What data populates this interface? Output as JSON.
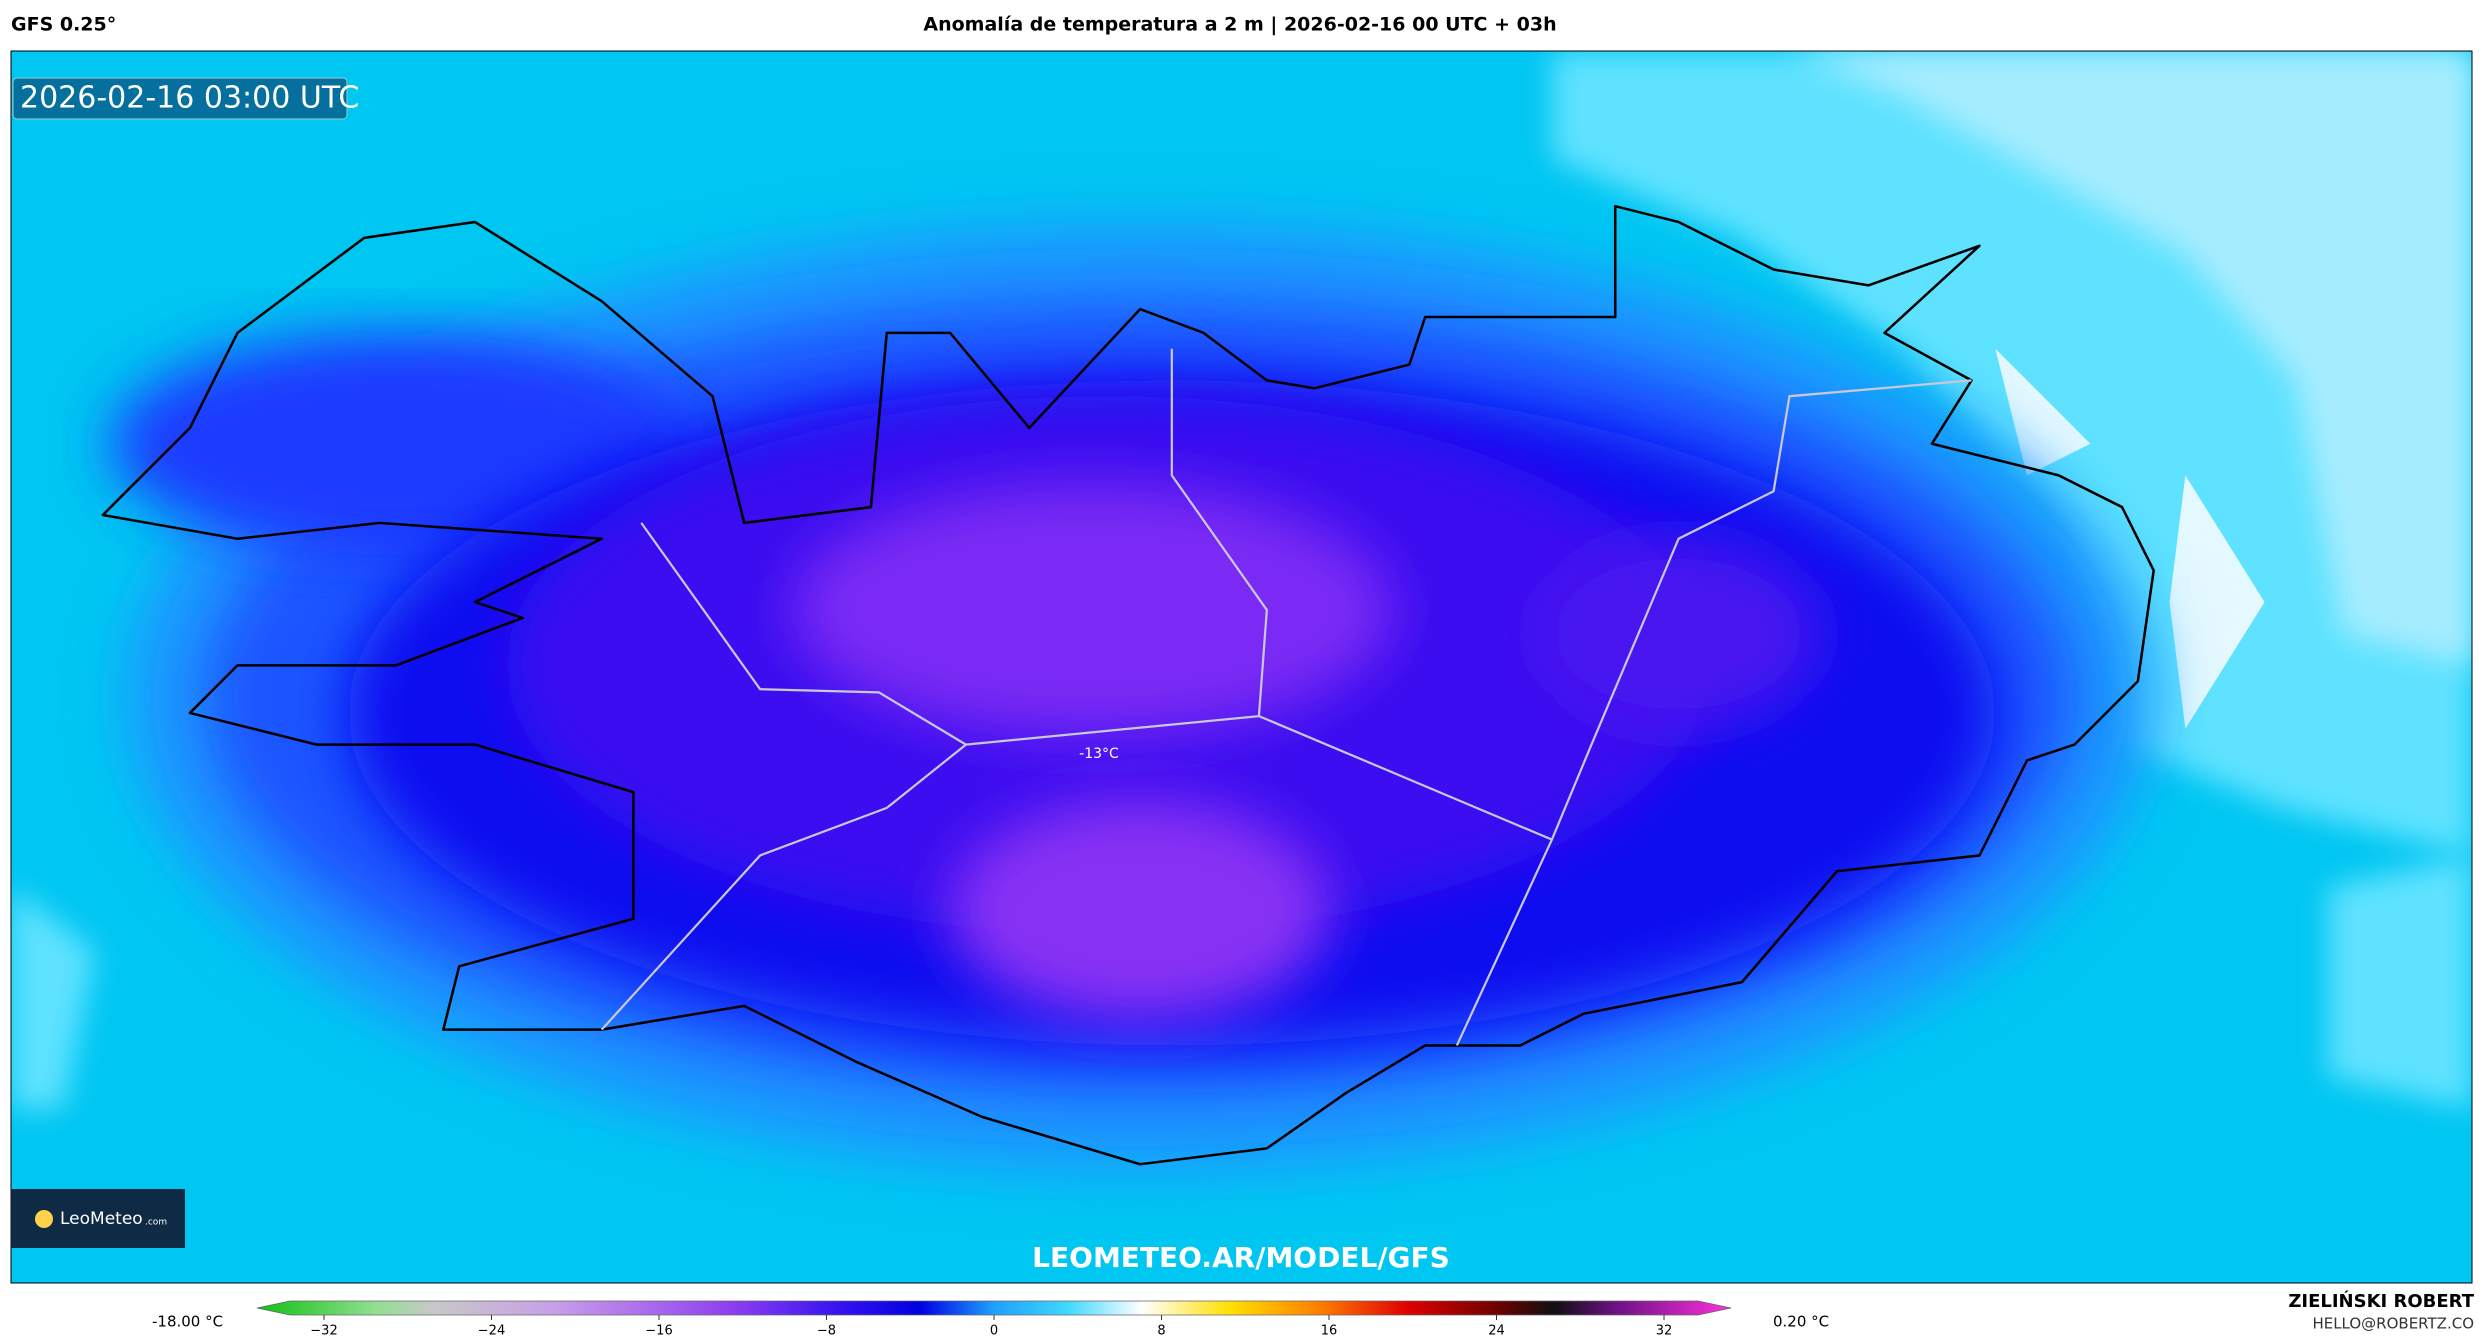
{
  "header": {
    "model": "GFS 0.25°",
    "title": "Anomalía de temperatura a 2 m | 2026-02-16 00 UTC + 03h"
  },
  "map": {
    "valid_time": "2026-02-16 03:00 UTC",
    "point_label": "-13°C",
    "watermark": "LEOMETEO.AR/MODEL/GFS",
    "logo": "LeoMeteo",
    "logo_suffix": ".com"
  },
  "colorbar": {
    "min_label": "-18.00 °C",
    "max_label": "0.20 °C",
    "range": [
      -35.2,
      35.2
    ],
    "ticks": [
      {
        "value": -32,
        "label": "−32"
      },
      {
        "value": -24,
        "label": "−24"
      },
      {
        "value": -16,
        "label": "−16"
      },
      {
        "value": -8,
        "label": "−8"
      },
      0,
      8,
      16,
      24,
      32
    ]
  },
  "footer": {
    "author": "ZIELIŃSKI ROBERT",
    "email": "HELLO@ROBERTZ.CO"
  }
}
